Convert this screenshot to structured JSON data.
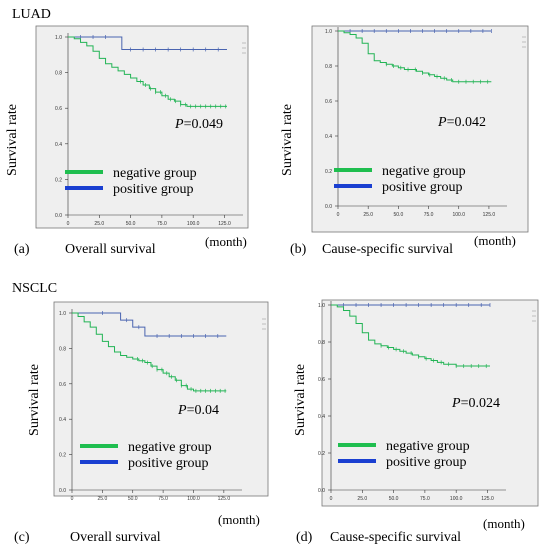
{
  "figure": {
    "sections": [
      {
        "label": "LUAD"
      },
      {
        "label": "NSCLC"
      }
    ],
    "legend": {
      "items": [
        {
          "label": "negative group",
          "color": "#1fbe4f"
        },
        {
          "label": "positive group",
          "color": "#1a3fd1"
        }
      ]
    },
    "ylabel": "Survival rate",
    "xunit": "(month)"
  },
  "chart_data": [
    {
      "type": "line",
      "panel_label": "(a)",
      "caption": "Overall survival",
      "group": "LUAD",
      "ylabel": "Survival rate",
      "xunit": "(month)",
      "pvalue_prefix": "P",
      "pvalue_text": "=0.049",
      "x_ticks": [
        "0",
        "25.0",
        "50.0",
        "75.0",
        "100.0",
        "125.0"
      ],
      "y_ticks": [
        "0.0",
        "0.2",
        "0.4",
        "0.6",
        "0.8",
        "1.0"
      ],
      "xlim": [
        0,
        135
      ],
      "ylim": [
        0,
        1.0
      ],
      "series": [
        {
          "name": "positive group",
          "x": [
            0,
            43,
            43,
            127
          ],
          "y": [
            1.0,
            1.0,
            0.93,
            0.93
          ],
          "censor_x": [
            10,
            20,
            30,
            50,
            60,
            70,
            80,
            90,
            100,
            110,
            120
          ]
        },
        {
          "name": "negative group",
          "x": [
            0,
            5,
            10,
            15,
            20,
            25,
            30,
            35,
            40,
            45,
            50,
            55,
            60,
            65,
            70,
            75,
            80,
            85,
            90,
            95,
            100,
            105,
            110,
            115,
            120,
            127
          ],
          "y": [
            1.0,
            0.99,
            0.97,
            0.95,
            0.92,
            0.88,
            0.85,
            0.83,
            0.81,
            0.79,
            0.77,
            0.75,
            0.73,
            0.71,
            0.69,
            0.67,
            0.65,
            0.64,
            0.62,
            0.61,
            0.61,
            0.61,
            0.61,
            0.61,
            0.61,
            0.61
          ],
          "censor_x": [
            58,
            62,
            66,
            70,
            74,
            78,
            82,
            86,
            90,
            94,
            98,
            102,
            106,
            110,
            114,
            118,
            122,
            126
          ]
        }
      ]
    },
    {
      "type": "line",
      "panel_label": "(b)",
      "caption": "Cause-specific survival",
      "group": "LUAD",
      "ylabel": "Survival rate",
      "xunit": "(month)",
      "pvalue_prefix": "P",
      "pvalue_text": "=0.042",
      "x_ticks": [
        "0",
        "25.0",
        "50.0",
        "75.0",
        "100.0",
        "125.0"
      ],
      "y_ticks": [
        "0.0",
        "0.2",
        "0.4",
        "0.6",
        "0.8",
        "1.0"
      ],
      "xlim": [
        0,
        135
      ],
      "ylim": [
        0,
        1.0
      ],
      "series": [
        {
          "name": "positive group",
          "x": [
            0,
            127
          ],
          "y": [
            1.0,
            1.0
          ],
          "censor_x": [
            10,
            20,
            30,
            40,
            50,
            60,
            70,
            80,
            90,
            100,
            110,
            120,
            127
          ]
        },
        {
          "name": "negative group",
          "x": [
            0,
            5,
            10,
            15,
            20,
            25,
            30,
            35,
            40,
            45,
            50,
            55,
            60,
            65,
            70,
            75,
            80,
            85,
            90,
            95,
            100,
            105,
            110,
            115,
            120,
            127
          ],
          "y": [
            1.0,
            0.99,
            0.98,
            0.96,
            0.93,
            0.87,
            0.83,
            0.82,
            0.81,
            0.8,
            0.79,
            0.78,
            0.78,
            0.77,
            0.76,
            0.75,
            0.74,
            0.73,
            0.72,
            0.71,
            0.71,
            0.71,
            0.71,
            0.71,
            0.71,
            0.71
          ],
          "censor_x": [
            40,
            46,
            52,
            58,
            64,
            70,
            76,
            82,
            88,
            94,
            100,
            106,
            112,
            118,
            124
          ]
        }
      ]
    },
    {
      "type": "line",
      "panel_label": "(c)",
      "caption": "Overall survival",
      "group": "NSCLC",
      "ylabel": "Survival rate",
      "xunit": "(month)",
      "pvalue_prefix": "P",
      "pvalue_text": "=0.04",
      "x_ticks": [
        "0",
        "25.0",
        "50.0",
        "75.0",
        "100.0",
        "125.0"
      ],
      "y_ticks": [
        "0.0",
        "0.2",
        "0.4",
        "0.6",
        "0.8",
        "1.0"
      ],
      "xlim": [
        0,
        135
      ],
      "ylim": [
        0,
        1.0
      ],
      "series": [
        {
          "name": "positive group",
          "x": [
            0,
            40,
            40,
            50,
            50,
            60,
            60,
            127
          ],
          "y": [
            1.0,
            1.0,
            0.96,
            0.96,
            0.92,
            0.92,
            0.87,
            0.87
          ],
          "censor_x": [
            25,
            45,
            55,
            70,
            80,
            90,
            100,
            110,
            120
          ]
        },
        {
          "name": "negative group",
          "x": [
            0,
            5,
            10,
            15,
            20,
            25,
            30,
            35,
            40,
            45,
            50,
            55,
            60,
            65,
            70,
            75,
            80,
            85,
            90,
            95,
            100,
            105,
            110,
            115,
            120,
            127
          ],
          "y": [
            1.0,
            0.98,
            0.95,
            0.92,
            0.88,
            0.84,
            0.81,
            0.78,
            0.76,
            0.75,
            0.74,
            0.73,
            0.72,
            0.7,
            0.68,
            0.66,
            0.64,
            0.62,
            0.59,
            0.57,
            0.56,
            0.56,
            0.56,
            0.56,
            0.56,
            0.56
          ],
          "censor_x": [
            54,
            58,
            62,
            66,
            70,
            74,
            78,
            82,
            86,
            90,
            94,
            98,
            102,
            106,
            110,
            114,
            118,
            122,
            126
          ]
        }
      ]
    },
    {
      "type": "line",
      "panel_label": "(d)",
      "caption": "Cause-specific survival",
      "group": "NSCLC",
      "ylabel": "Survival rate",
      "xunit": "(month)",
      "pvalue_prefix": "P",
      "pvalue_text": "=0.024",
      "x_ticks": [
        "0",
        "25.0",
        "50.0",
        "75.0",
        "100.0",
        "125.0"
      ],
      "y_ticks": [
        "0.0",
        "0.2",
        "0.4",
        "0.6",
        "0.8",
        "1.0"
      ],
      "xlim": [
        0,
        135
      ],
      "ylim": [
        0,
        1.0
      ],
      "series": [
        {
          "name": "positive group",
          "x": [
            0,
            127
          ],
          "y": [
            1.0,
            1.0
          ],
          "censor_x": [
            10,
            20,
            30,
            40,
            50,
            60,
            70,
            80,
            90,
            100,
            110,
            120,
            127
          ]
        },
        {
          "name": "negative group",
          "x": [
            0,
            5,
            10,
            15,
            20,
            25,
            30,
            35,
            40,
            45,
            50,
            55,
            60,
            65,
            70,
            75,
            80,
            85,
            90,
            95,
            100,
            105,
            110,
            115,
            120,
            127
          ],
          "y": [
            1.0,
            0.99,
            0.97,
            0.94,
            0.9,
            0.85,
            0.81,
            0.79,
            0.78,
            0.77,
            0.76,
            0.75,
            0.74,
            0.73,
            0.72,
            0.71,
            0.7,
            0.69,
            0.68,
            0.68,
            0.67,
            0.67,
            0.67,
            0.67,
            0.67,
            0.67
          ],
          "censor_x": [
            40,
            46,
            52,
            58,
            64,
            70,
            76,
            82,
            88,
            94,
            100,
            106,
            112,
            118,
            124
          ]
        }
      ]
    }
  ]
}
